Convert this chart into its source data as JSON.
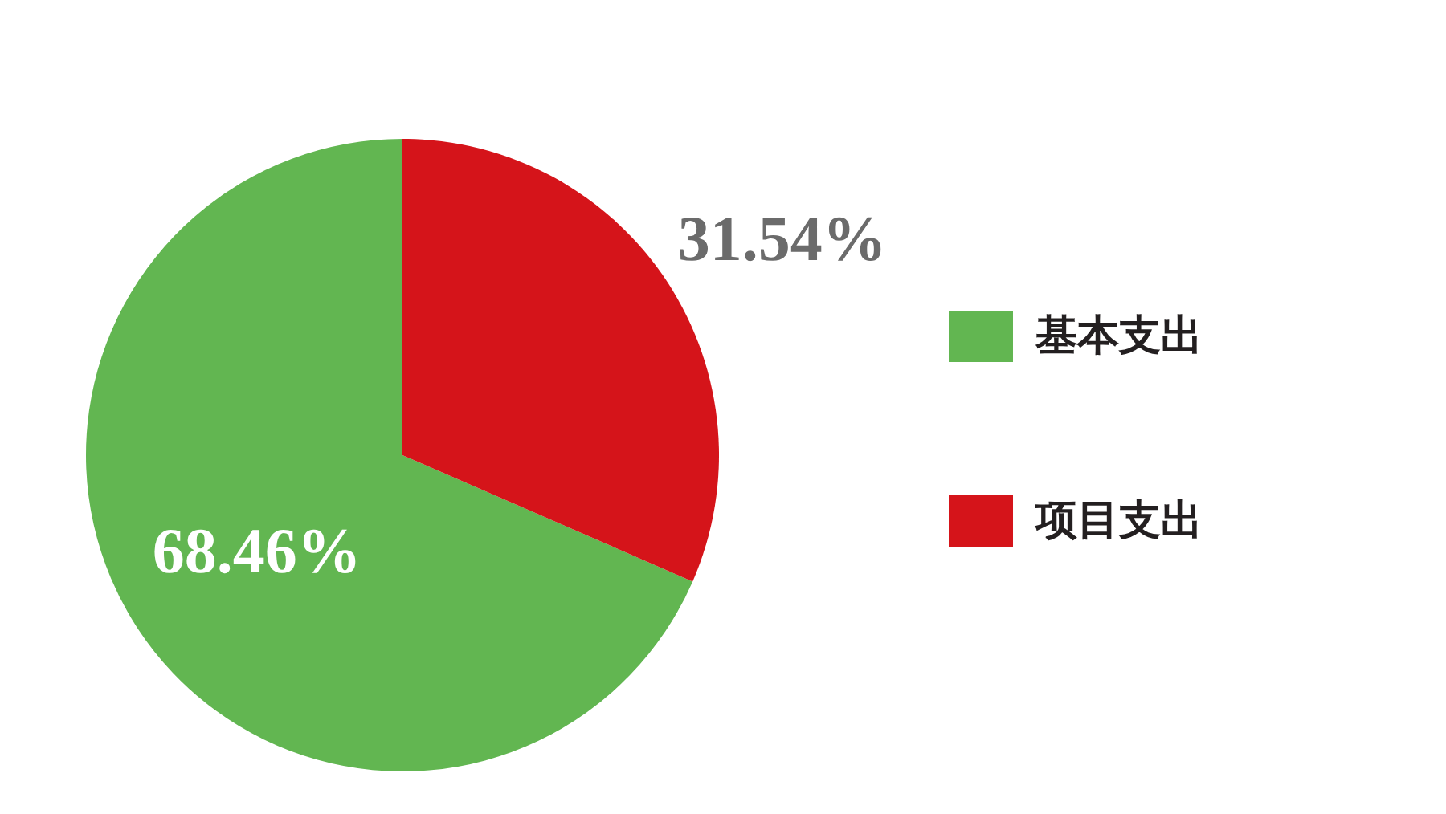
{
  "chart_data": {
    "type": "pie",
    "categories": [
      "基本支出",
      "项目支出"
    ],
    "values": [
      68.46,
      31.54
    ],
    "colors": [
      "#62b651",
      "#d5141a"
    ],
    "value_labels": [
      "68.46%",
      "31.54%"
    ],
    "legend": "right"
  }
}
